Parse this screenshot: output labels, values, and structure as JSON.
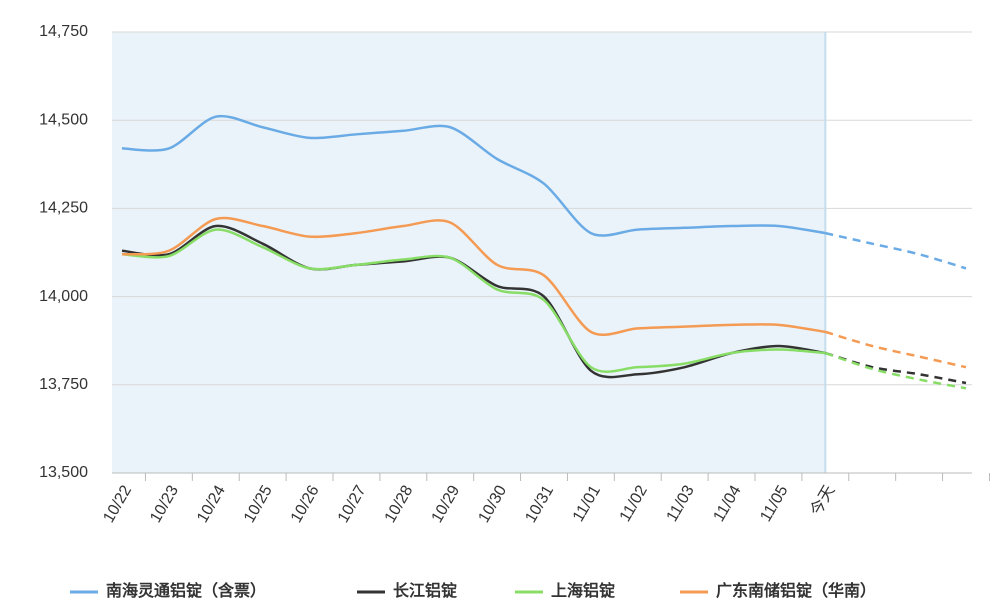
{
  "chart_data": {
    "type": "line",
    "categories": [
      "10/22",
      "10/23",
      "10/24",
      "10/25",
      "10/26",
      "10/27",
      "10/28",
      "10/29",
      "10/30",
      "10/31",
      "11/01",
      "11/02",
      "11/03",
      "11/04",
      "11/05",
      "今天",
      null,
      null,
      null
    ],
    "series": [
      {
        "name": "南海灵通铝锭（含票）",
        "color": "#6aabe6",
        "values": [
          14420,
          14420,
          14510,
          14480,
          14450,
          14460,
          14470,
          14480,
          14390,
          14320,
          14180,
          14190,
          14195,
          14200,
          14200,
          14180,
          14150,
          14120,
          14080
        ]
      },
      {
        "name": "长江铝锭",
        "color": "#333333",
        "values": [
          14130,
          14120,
          14200,
          14150,
          14080,
          14090,
          14100,
          14110,
          14030,
          14000,
          13790,
          13780,
          13800,
          13840,
          13860,
          13840,
          13800,
          13780,
          13755
        ]
      },
      {
        "name": "上海铝锭",
        "color": "#88dd66",
        "values": [
          14120,
          14115,
          14190,
          14140,
          14080,
          14090,
          14105,
          14110,
          14020,
          13990,
          13800,
          13800,
          13810,
          13840,
          13850,
          13840,
          13795,
          13765,
          13740
        ]
      },
      {
        "name": "广东南储铝锭（华南）",
        "color": "#f49a52",
        "values": [
          14120,
          14130,
          14220,
          14200,
          14170,
          14180,
          14200,
          14210,
          14090,
          14060,
          13900,
          13910,
          13915,
          13920,
          13920,
          13900,
          13860,
          13830,
          13800
        ]
      }
    ],
    "ylim": [
      13500,
      14750
    ],
    "yticks": [
      {
        "value": 13500,
        "label": "13,500"
      },
      {
        "value": 13750,
        "label": "13,750"
      },
      {
        "value": 14000,
        "label": "14,000"
      },
      {
        "value": 14250,
        "label": "14,250"
      },
      {
        "value": 14500,
        "label": "14,500"
      },
      {
        "value": 14750,
        "label": "14,750"
      }
    ],
    "grid": true,
    "legend": "bottom",
    "dash_from_category": 15
  }
}
